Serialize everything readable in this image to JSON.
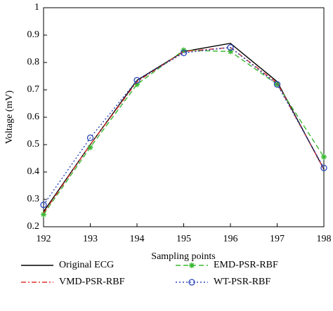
{
  "chart_data": {
    "type": "line",
    "x_label": "Sampling points",
    "y_label": "Voltage (mV)",
    "x": [
      192,
      193,
      194,
      195,
      196,
      197,
      198
    ],
    "xlim": [
      192,
      198
    ],
    "xticks": [
      192,
      193,
      194,
      195,
      196,
      197,
      198
    ],
    "ylim": [
      0.2,
      1
    ],
    "yticks": [
      0.2,
      0.3,
      0.4,
      0.5,
      0.6,
      0.7,
      0.8,
      0.9,
      1
    ],
    "grid": false,
    "legend": "bottom",
    "series": [
      {
        "name": "Original ECG",
        "color": "#000000",
        "linestyle": "solid",
        "marker": "none",
        "values": [
          0.255,
          0.5,
          0.735,
          0.84,
          0.87,
          0.73,
          0.41
        ]
      },
      {
        "name": "EMD-PSR-RBF",
        "color": "#3cb834",
        "linestyle": "dashed",
        "marker": "star",
        "values": [
          0.245,
          0.49,
          0.72,
          0.845,
          0.84,
          0.72,
          0.455
        ]
      },
      {
        "name": "VMD-PSR-RBF",
        "color": "#e0302e",
        "linestyle": "dashdot",
        "marker": "none",
        "values": [
          0.25,
          0.5,
          0.73,
          0.84,
          0.855,
          0.725,
          0.41
        ]
      },
      {
        "name": "WT-PSR-RBF",
        "color": "#2a44b8",
        "linestyle": "dotted",
        "marker": "circle",
        "values": [
          0.28,
          0.525,
          0.735,
          0.835,
          0.855,
          0.72,
          0.415
        ]
      }
    ]
  }
}
